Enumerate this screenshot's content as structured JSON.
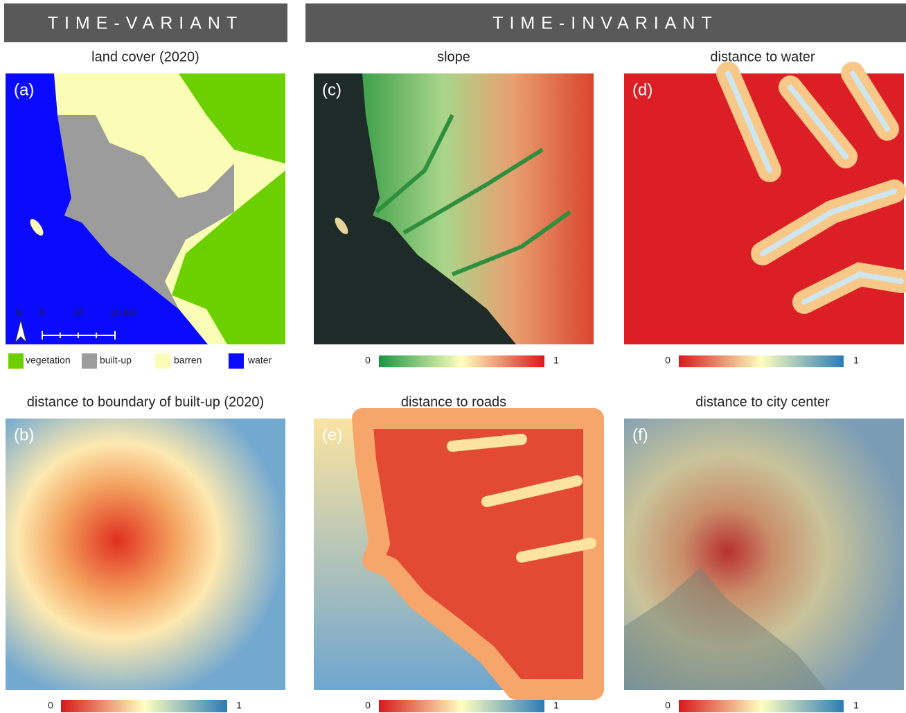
{
  "headers": {
    "time_variant": "TIME-VARIANT",
    "time_invariant": "TIME-INVARIANT"
  },
  "panels": [
    {
      "label": "(a)",
      "title": "land cover (2020)",
      "legend": [
        "vegetation",
        "built-up",
        "barren",
        "water"
      ],
      "scale_bar": {
        "north": "N",
        "ticks": [
          "0",
          "10",
          "20 km"
        ]
      }
    },
    {
      "label": "(c)",
      "title": "slope",
      "colorbar": {
        "min": "0",
        "max": "1"
      }
    },
    {
      "label": "(d)",
      "title": "distance to water",
      "colorbar": {
        "min": "0",
        "max": "1"
      }
    },
    {
      "label": "(b)",
      "title": "distance to boundary of built-up (2020)",
      "colorbar": {
        "min": "0",
        "max": "1"
      }
    },
    {
      "label": "(e)",
      "title": "distance to roads",
      "colorbar": {
        "min": "0",
        "max": "1"
      }
    },
    {
      "label": "(f)",
      "title": "distance to city center",
      "colorbar": {
        "min": "0",
        "max": "1"
      }
    }
  ]
}
